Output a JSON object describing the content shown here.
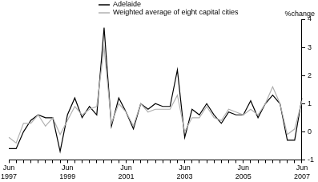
{
  "chart_data": {
    "type": "line",
    "y_label": "%change",
    "categories": [
      "Jun 1997",
      null,
      null,
      null,
      null,
      null,
      null,
      null,
      "Jun 1999",
      null,
      null,
      null,
      null,
      null,
      null,
      null,
      "Jun 2001",
      null,
      null,
      null,
      null,
      null,
      null,
      null,
      "Jun 2003",
      null,
      null,
      null,
      null,
      null,
      null,
      null,
      "Jun 2005",
      null,
      null,
      null,
      null,
      null,
      null,
      null,
      "Jun 2007"
    ],
    "series": [
      {
        "name": "Adelaide",
        "color": "#000000",
        "values": [
          -0.6,
          -0.6,
          0.0,
          0.4,
          0.6,
          0.5,
          0.5,
          -0.7,
          0.6,
          1.2,
          0.5,
          0.9,
          0.6,
          3.7,
          0.2,
          1.2,
          0.7,
          0.1,
          1.0,
          0.8,
          1.0,
          0.9,
          0.9,
          2.2,
          -0.2,
          0.8,
          0.6,
          1.0,
          0.6,
          0.3,
          0.7,
          0.6,
          0.6,
          1.1,
          0.5,
          1.0,
          1.3,
          1.0,
          -0.3,
          -0.3,
          1.2
        ]
      },
      {
        "name": "Weighted average of eight capital cities",
        "color": "#b0b0b0",
        "values": [
          -0.2,
          -0.4,
          0.3,
          0.3,
          0.6,
          0.2,
          0.5,
          -0.1,
          0.4,
          0.9,
          0.6,
          0.8,
          0.9,
          3.0,
          0.3,
          1.0,
          0.7,
          0.2,
          1.0,
          0.7,
          0.8,
          0.8,
          0.8,
          1.3,
          0.0,
          0.5,
          0.5,
          0.9,
          0.5,
          0.4,
          0.8,
          0.7,
          0.6,
          0.8,
          0.6,
          1.0,
          1.6,
          1.0,
          -0.1,
          0.1,
          1.1
        ]
      }
    ],
    "ylim": [
      -1,
      4
    ],
    "yticks": [
      -1,
      0,
      1,
      2,
      3,
      4
    ],
    "grid": false,
    "legend": "top-left"
  }
}
